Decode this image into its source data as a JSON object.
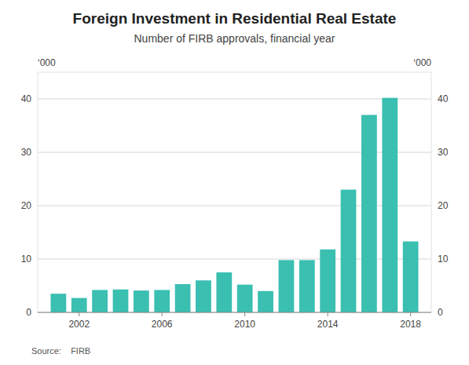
{
  "chart_data": {
    "type": "bar",
    "title": "Foreign Investment in Residential Real Estate",
    "subtitle": "Number of FIRB approvals, financial year",
    "y_label": "‘000",
    "y2_label": "‘000",
    "source": "Source:    FIRB",
    "x": [
      2001,
      2002,
      2003,
      2004,
      2005,
      2006,
      2007,
      2008,
      2009,
      2010,
      2011,
      2012,
      2013,
      2014,
      2015,
      2016,
      2017,
      2018
    ],
    "values": [
      3.5,
      2.7,
      4.2,
      4.3,
      4.1,
      4.2,
      5.3,
      6.0,
      7.5,
      5.2,
      4.0,
      9.8,
      9.8,
      11.8,
      23.0,
      37.0,
      40.2,
      13.3
    ],
    "color": "#3ABFB1",
    "xlim": [
      2000.0,
      2019.0
    ],
    "xticks": [
      2002,
      2006,
      2010,
      2014,
      2018
    ],
    "ylim": [
      0,
      45
    ],
    "yticks": [
      0,
      10,
      20,
      30,
      40
    ],
    "y2lim": [
      0,
      45
    ],
    "y2ticks": [
      0,
      10,
      20,
      30,
      40
    ],
    "grid": true
  }
}
